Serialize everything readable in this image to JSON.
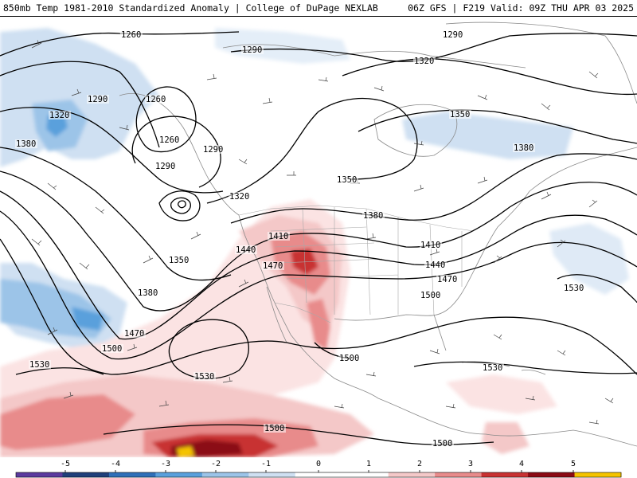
{
  "header": {
    "title_left": "850mb Temp 1981-2010 Standardized Anomaly | College of DuPage NEXLAB",
    "title_right": "06Z GFS | F219 Valid: 09Z THU APR 03 2025"
  },
  "contour_labels": [
    {
      "text": "1260"
    },
    {
      "text": "1290"
    },
    {
      "text": "1290"
    },
    {
      "text": "1320"
    },
    {
      "text": "1290"
    },
    {
      "text": "1320"
    },
    {
      "text": "1260"
    },
    {
      "text": "1380"
    },
    {
      "text": "1260"
    },
    {
      "text": "1290"
    },
    {
      "text": "1290"
    },
    {
      "text": "1320"
    },
    {
      "text": "1350"
    },
    {
      "text": "1350"
    },
    {
      "text": "1380"
    },
    {
      "text": "1380"
    },
    {
      "text": "1410"
    },
    {
      "text": "1440"
    },
    {
      "text": "1470"
    },
    {
      "text": "1410"
    },
    {
      "text": "1440"
    },
    {
      "text": "1470"
    },
    {
      "text": "1350"
    },
    {
      "text": "1380"
    },
    {
      "text": "1470"
    },
    {
      "text": "1500"
    },
    {
      "text": "1500"
    },
    {
      "text": "1530"
    },
    {
      "text": "1530"
    },
    {
      "text": "1530"
    },
    {
      "text": "1500"
    },
    {
      "text": "1530"
    },
    {
      "text": "1500"
    },
    {
      "text": "1500"
    }
  ],
  "colorbar": {
    "ticks": [
      "-5",
      "-4",
      "-3",
      "-2",
      "-1",
      "0",
      "1",
      "2",
      "3",
      "4",
      "5"
    ],
    "colors": [
      "#5b3a9e",
      "#1f3f7a",
      "#2f6fb8",
      "#5aa0dc",
      "#9cc4e8",
      "#cfe0f2",
      "#ffffff",
      "#ffffff",
      "#f4c8c8",
      "#e88b8b",
      "#c83232",
      "#8b0a14",
      "#f5c400"
    ]
  }
}
